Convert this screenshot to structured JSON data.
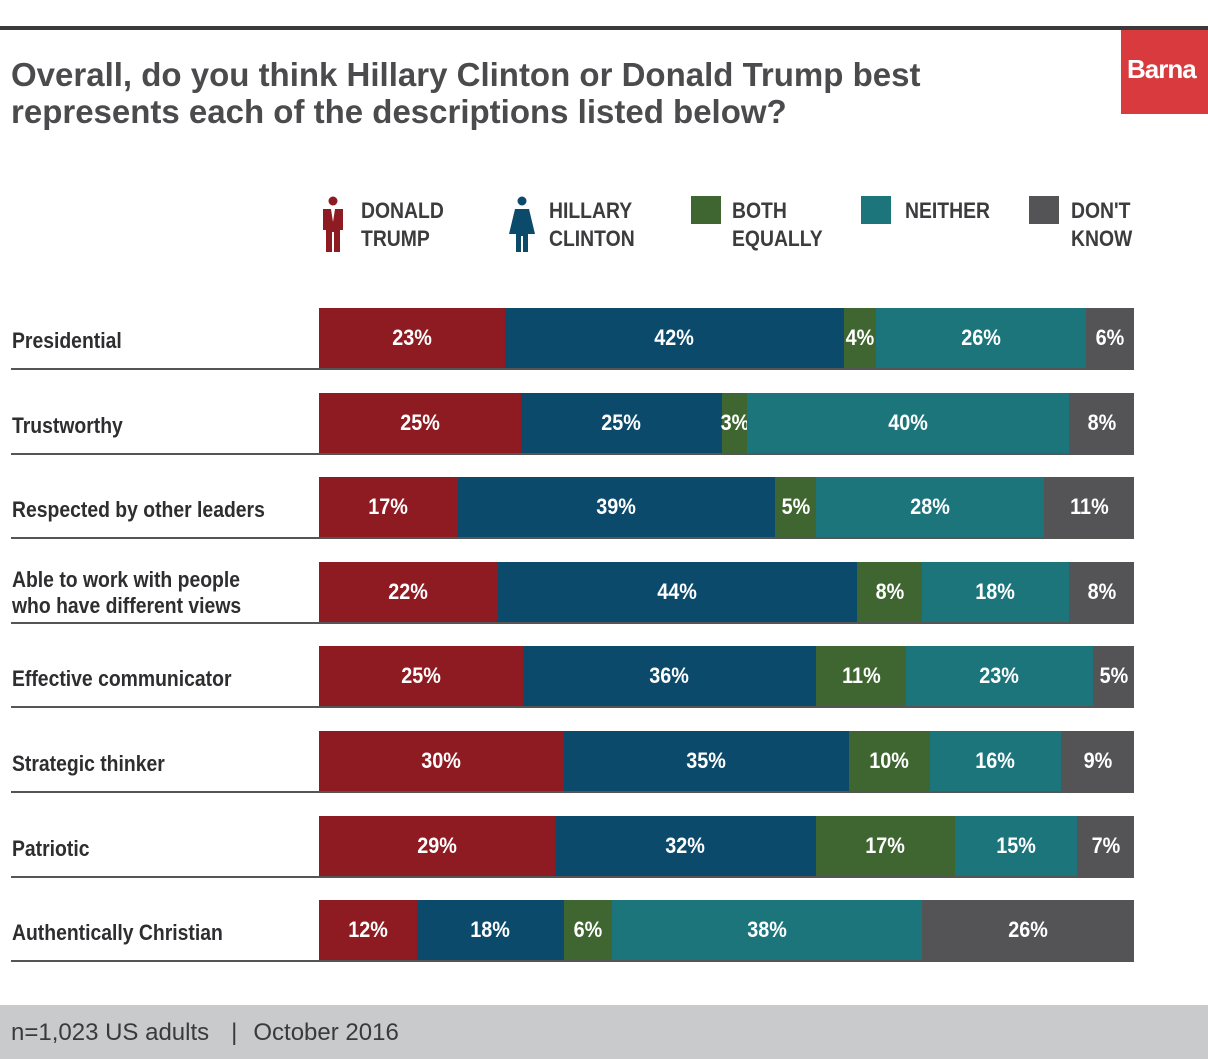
{
  "title": "Overall, do you think Hillary Clinton or Donald Trump best represents each of the descriptions listed below?",
  "logo": "Barna",
  "colors": {
    "trump": "#8e1b21",
    "clinton": "#0c4a6c",
    "both": "#3f6631",
    "neither": "#1d757c",
    "dont_know": "#545456"
  },
  "legend": [
    {
      "key": "trump",
      "label": "DONALD\nTRUMP",
      "icon": "man-figure-icon"
    },
    {
      "key": "clinton",
      "label": "HILLARY\nCLINTON",
      "icon": "woman-figure-icon"
    },
    {
      "key": "both",
      "label": "BOTH\nEQUALLY",
      "icon": "square-swatch"
    },
    {
      "key": "neither",
      "label": "NEITHER",
      "icon": "square-swatch"
    },
    {
      "key": "dont_know",
      "label": "DON'T\nKNOW",
      "icon": "square-swatch"
    }
  ],
  "chart_data": {
    "type": "bar",
    "orientation": "horizontal",
    "stacked": true,
    "unit": "%",
    "categories": [
      "Presidential",
      "Trustworthy",
      "Respected by other leaders",
      "Able to work with people\nwho have different views",
      "Effective communicator",
      "Strategic thinker",
      "Patriotic",
      "Authentically Christian"
    ],
    "series": [
      {
        "name": "DONALD TRUMP",
        "key": "trump",
        "values": [
          23,
          25,
          17,
          22,
          25,
          30,
          29,
          12
        ]
      },
      {
        "name": "HILLARY CLINTON",
        "key": "clinton",
        "values": [
          42,
          25,
          39,
          44,
          36,
          35,
          32,
          18
        ]
      },
      {
        "name": "BOTH EQUALLY",
        "key": "both",
        "values": [
          4,
          3,
          5,
          8,
          11,
          10,
          17,
          6
        ]
      },
      {
        "name": "NEITHER",
        "key": "neither",
        "values": [
          26,
          40,
          28,
          18,
          23,
          16,
          15,
          38
        ]
      },
      {
        "name": "DON'T KNOW",
        "key": "dont_know",
        "values": [
          6,
          8,
          11,
          8,
          5,
          9,
          7,
          26
        ]
      }
    ]
  },
  "footer": {
    "sample": "n=1,023 US adults",
    "separator": "|",
    "date": "October 2016"
  }
}
